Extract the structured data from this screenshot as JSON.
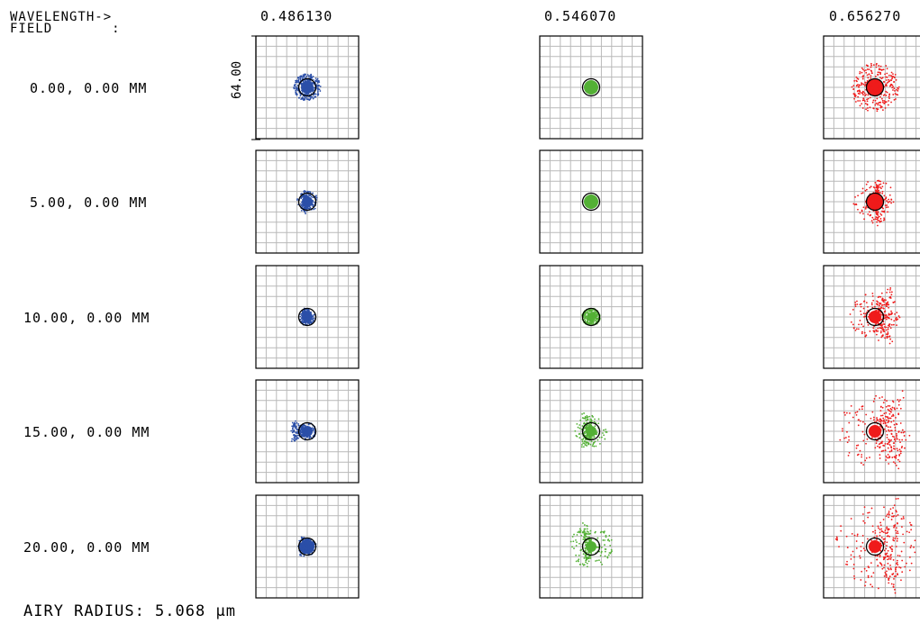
{
  "header": {
    "wavelength_label": "WAVELENGTH->",
    "field_label": "FIELD       :"
  },
  "wavelengths": [
    {
      "label": "0.486130",
      "color": "#2b4fa8"
    },
    {
      "label": "0.546070",
      "color": "#53b035"
    },
    {
      "label": "0.656270",
      "color": "#ef1b1b"
    }
  ],
  "fields": [
    {
      "label": "0.00, 0.00 MM"
    },
    {
      "label": "5.00, 0.00 MM"
    },
    {
      "label": "10.00, 0.00 MM"
    },
    {
      "label": "15.00, 0.00 MM"
    },
    {
      "label": "20.00, 0.00 MM"
    }
  ],
  "scale_label": "64.00",
  "footer": {
    "airy_radius": "AIRY RADIUS: 5.068 µm"
  },
  "colors": {
    "grid": "#b9b9b9",
    "frame": "#000000",
    "airy_circle": "#000000"
  }
}
